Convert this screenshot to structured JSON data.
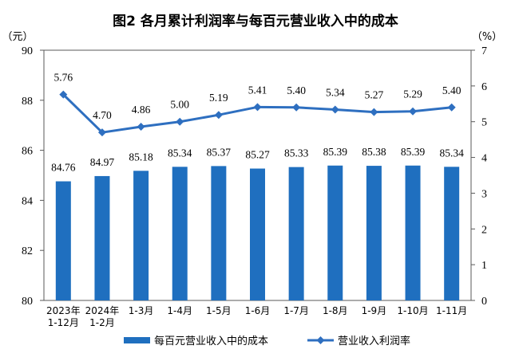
{
  "chart_data": {
    "type": "bar+line",
    "title": "图2  各月累计利润率与每百元营业收入中的成本",
    "left_axis_unit": "（元）",
    "right_axis_unit": "（%）",
    "categories": [
      [
        "2023年",
        "1-12月"
      ],
      [
        "2024年",
        "1-2月"
      ],
      [
        "1-3月"
      ],
      [
        "1-4月"
      ],
      [
        "1-5月"
      ],
      [
        "1-6月"
      ],
      [
        "1-7月"
      ],
      [
        "1-8月"
      ],
      [
        "1-9月"
      ],
      [
        "1-10月"
      ],
      [
        "1-11月"
      ]
    ],
    "series": [
      {
        "name": "每百元营业收入中的成本",
        "type": "bar",
        "axis": "left",
        "color": "#1f6fbf",
        "values": [
          84.76,
          84.97,
          85.18,
          85.34,
          85.37,
          85.27,
          85.33,
          85.39,
          85.38,
          85.39,
          85.34
        ]
      },
      {
        "name": "营业收入利润率",
        "type": "line",
        "axis": "right",
        "color": "#2e6fc0",
        "values": [
          5.76,
          4.7,
          4.86,
          5.0,
          5.19,
          5.41,
          5.4,
          5.34,
          5.27,
          5.29,
          5.4
        ]
      }
    ],
    "left_axis": {
      "min": 80,
      "max": 90,
      "ticks": [
        80,
        82,
        84,
        86,
        88,
        90
      ]
    },
    "right_axis": {
      "min": 0,
      "max": 7,
      "ticks": [
        0,
        1,
        2,
        3,
        4,
        5,
        6,
        7
      ]
    },
    "legend_position": "bottom"
  }
}
